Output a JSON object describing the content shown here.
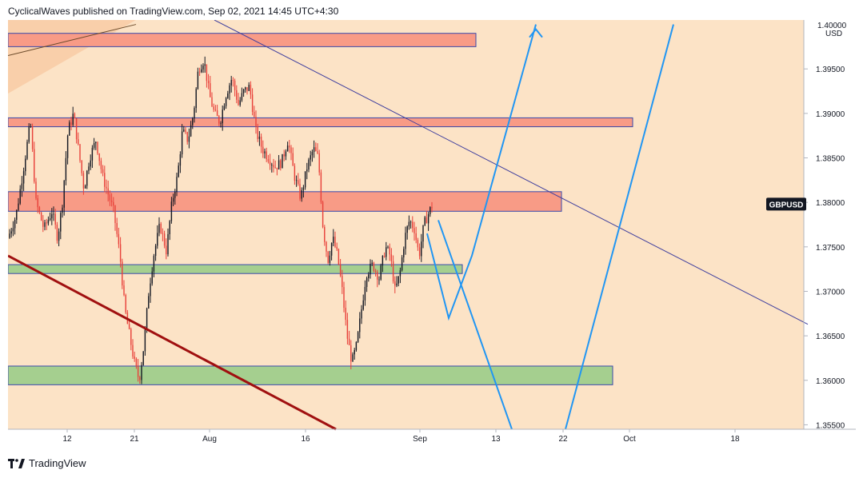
{
  "header": {
    "text": "CyclicalWaves published on TradingView.com, Sep 02, 2021 14:45 UTC+4:30"
  },
  "footer": {
    "brand": "TradingView"
  },
  "colors": {
    "background": "#fce3c6",
    "bull": "#131722",
    "bear": "#e8413a",
    "resistance_fill": "#f89b86",
    "support_fill": "#a5cf8f",
    "box_border": "#3949ab",
    "trendline": "#3f3f9e",
    "projection": "#2196f3",
    "lower_channel": "#a01010"
  },
  "chart_data": {
    "type": "candlestick",
    "symbol": "GBPUSD",
    "currency": "USD",
    "ylim": [
      1.3545,
      1.4005
    ],
    "y_ticks": [
      "1.35500",
      "1.36000",
      "1.36500",
      "1.37000",
      "1.37500",
      "1.38000",
      "1.38500",
      "1.39000",
      "1.39500"
    ],
    "y_top_label": "1.40000",
    "x_ticks": [
      {
        "label": "12",
        "x": 74
      },
      {
        "label": "21",
        "x": 158
      },
      {
        "label": "Aug",
        "x": 252
      },
      {
        "label": "16",
        "x": 372
      },
      {
        "label": "Sep",
        "x": 515
      },
      {
        "label": "13",
        "x": 610
      },
      {
        "label": "22",
        "x": 694
      },
      {
        "label": "Oct",
        "x": 777
      },
      {
        "label": "18",
        "x": 909
      }
    ],
    "price_label": {
      "text": "GBPUSD",
      "price": 1.3798
    },
    "zones": [
      {
        "kind": "resistance",
        "x1": 0,
        "x2": 585,
        "top": 1.399,
        "bottom": 1.3975
      },
      {
        "kind": "resistance",
        "x1": 0,
        "x2": 781,
        "top": 1.3895,
        "bottom": 1.3885
      },
      {
        "kind": "resistance",
        "x1": 0,
        "x2": 692,
        "top": 1.3812,
        "bottom": 1.379
      },
      {
        "kind": "support",
        "x1": 0,
        "x2": 568,
        "top": 1.373,
        "bottom": 1.372
      },
      {
        "kind": "support",
        "x1": 0,
        "x2": 756,
        "top": 1.3616,
        "bottom": 1.3595
      }
    ],
    "candle_path": [
      [
        0,
        1.376
      ],
      [
        10,
        1.3785
      ],
      [
        18,
        1.383
      ],
      [
        28,
        1.389
      ],
      [
        35,
        1.38
      ],
      [
        45,
        1.377
      ],
      [
        55,
        1.379
      ],
      [
        62,
        1.376
      ],
      [
        68,
        1.38
      ],
      [
        75,
        1.388
      ],
      [
        82,
        1.39
      ],
      [
        88,
        1.386
      ],
      [
        95,
        1.3815
      ],
      [
        102,
        1.385
      ],
      [
        110,
        1.387
      ],
      [
        118,
        1.383
      ],
      [
        125,
        1.381
      ],
      [
        132,
        1.379
      ],
      [
        140,
        1.374
      ],
      [
        146,
        1.368
      ],
      [
        152,
        1.365
      ],
      [
        158,
        1.362
      ],
      [
        164,
        1.36
      ],
      [
        170,
        1.364
      ],
      [
        176,
        1.37
      ],
      [
        182,
        1.374
      ],
      [
        190,
        1.3775
      ],
      [
        198,
        1.3745
      ],
      [
        205,
        1.38
      ],
      [
        212,
        1.383
      ],
      [
        218,
        1.388
      ],
      [
        225,
        1.387
      ],
      [
        232,
        1.39
      ],
      [
        238,
        1.395
      ],
      [
        245,
        1.396
      ],
      [
        252,
        1.392
      ],
      [
        258,
        1.39
      ],
      [
        265,
        1.389
      ],
      [
        272,
        1.392
      ],
      [
        280,
        1.394
      ],
      [
        288,
        1.391
      ],
      [
        295,
        1.3925
      ],
      [
        302,
        1.393
      ],
      [
        310,
        1.388
      ],
      [
        318,
        1.386
      ],
      [
        326,
        1.385
      ],
      [
        334,
        1.384
      ],
      [
        342,
        1.3845
      ],
      [
        350,
        1.387
      ],
      [
        358,
        1.383
      ],
      [
        366,
        1.3805
      ],
      [
        374,
        1.384
      ],
      [
        382,
        1.386
      ],
      [
        388,
        1.385
      ],
      [
        394,
        1.377
      ],
      [
        400,
        1.3735
      ],
      [
        406,
        1.376
      ],
      [
        412,
        1.374
      ],
      [
        418,
        1.37
      ],
      [
        424,
        1.365
      ],
      [
        430,
        1.362
      ],
      [
        436,
        1.364
      ],
      [
        442,
        1.368
      ],
      [
        448,
        1.372
      ],
      [
        456,
        1.373
      ],
      [
        464,
        1.3715
      ],
      [
        472,
        1.375
      ],
      [
        478,
        1.374
      ],
      [
        484,
        1.37
      ],
      [
        490,
        1.372
      ],
      [
        496,
        1.376
      ],
      [
        502,
        1.378
      ],
      [
        508,
        1.377
      ],
      [
        514,
        1.374
      ],
      [
        520,
        1.3775
      ],
      [
        527,
        1.379
      ],
      [
        532,
        1.38
      ]
    ],
    "drawings": {
      "descending_trendline": [
        [
          258,
          0
        ],
        [
          1000,
          1.3663
        ]
      ],
      "lower_channel_line": [
        [
          0,
          1.374
        ],
        [
          410,
          1.3545
        ]
      ],
      "wedge_top_line": [
        [
          0,
          1.3965
        ],
        [
          160,
          1.4
        ]
      ],
      "projection_1": [
        [
          524,
          1.3765
        ],
        [
          551,
          1.367
        ],
        [
          580,
          1.374
        ],
        [
          660,
          1.4
        ]
      ],
      "projection_2": [
        [
          538,
          1.378
        ],
        [
          630,
          1.3545
        ]
      ],
      "projection_3": [
        [
          697,
          1.3545
        ],
        [
          832,
          1.4
        ]
      ]
    }
  }
}
